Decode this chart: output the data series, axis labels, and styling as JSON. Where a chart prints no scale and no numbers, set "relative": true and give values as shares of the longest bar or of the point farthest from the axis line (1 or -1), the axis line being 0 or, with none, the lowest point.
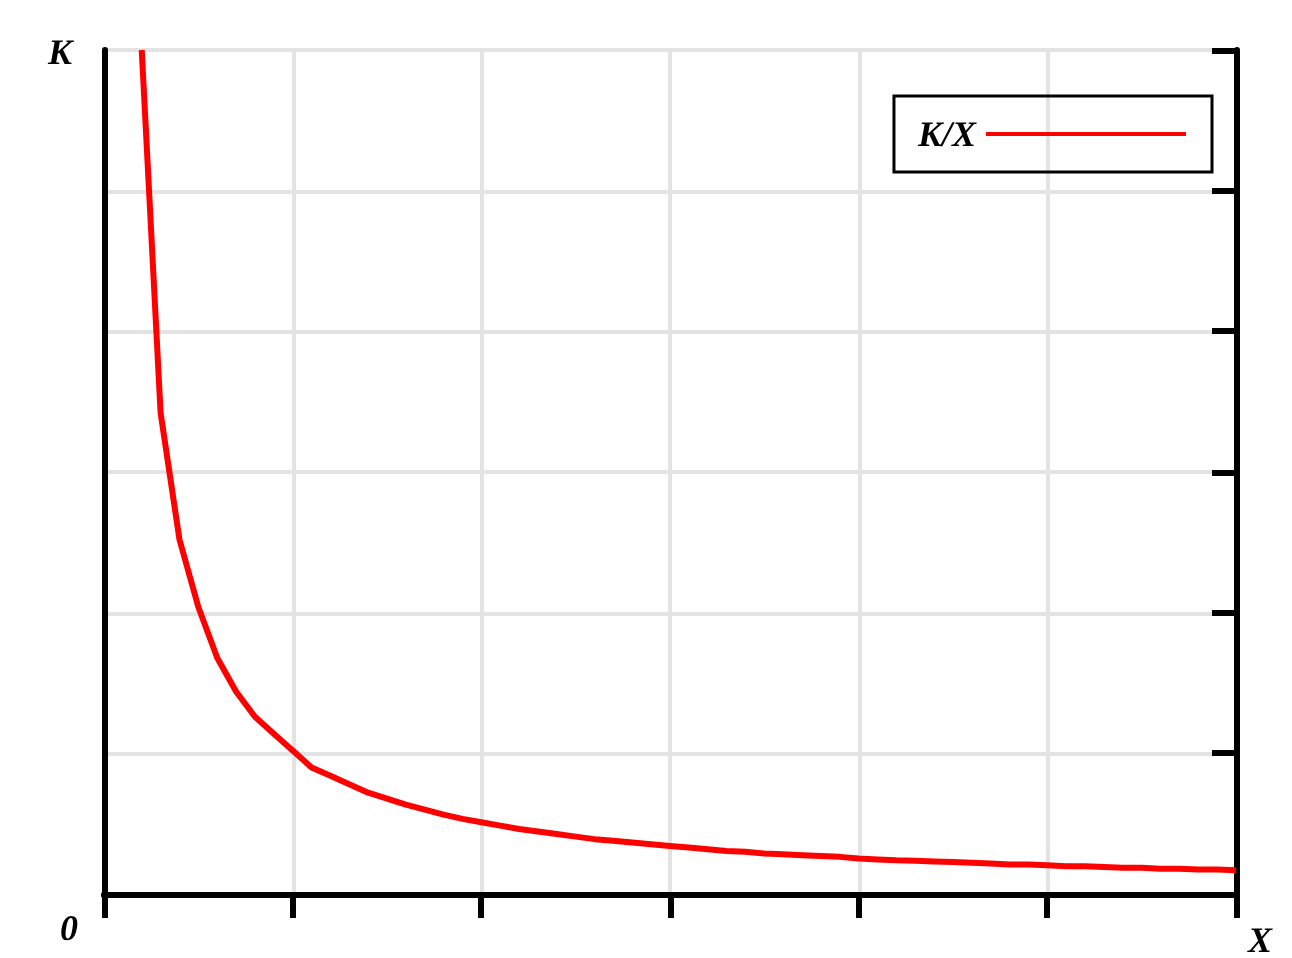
{
  "chart_data": {
    "type": "line",
    "relative": true,
    "xlabel": "X",
    "ylabel": "K",
    "annotations": [
      "0"
    ],
    "categories": [
      null,
      null,
      null,
      null,
      null,
      null,
      null,
      null,
      null,
      null,
      null,
      null,
      null,
      null,
      null,
      null,
      null,
      null,
      null,
      null,
      null,
      null,
      null,
      null,
      null,
      null,
      null,
      null,
      null,
      null,
      null,
      null,
      null,
      null,
      null,
      null,
      null,
      null,
      null,
      null,
      null,
      null,
      null,
      null,
      null,
      null,
      null,
      null,
      null,
      null,
      null,
      null,
      null,
      null,
      null,
      null,
      null,
      null,
      null,
      null,
      null
    ],
    "series": [
      {
        "name": "K/X",
        "color": "#ff0000",
        "values": [
          null,
          null,
          1,
          0.57,
          0.42,
          0.34,
          0.28,
          0.24,
          0.21,
          0.19,
          0.17,
          0.15,
          0.14,
          0.13,
          0.12,
          0.113,
          0.106,
          0.1,
          0.094,
          0.089,
          0.085,
          0.081,
          0.077,
          0.074,
          0.071,
          0.068,
          0.065,
          0.063,
          0.061,
          0.059,
          0.057,
          0.055,
          0.053,
          0.051,
          0.05,
          0.048,
          0.047,
          0.046,
          0.045,
          0.044,
          0.042,
          0.041,
          0.04,
          0.0395,
          0.0386,
          0.038,
          0.037,
          0.036,
          0.035,
          0.035,
          0.034,
          0.033,
          0.033,
          0.032,
          0.031,
          0.031,
          0.03,
          0.03,
          0.029,
          0.029,
          0.028
        ]
      }
    ],
    "grid": true,
    "legend": "top right",
    "marker": "none",
    "line_style": "solid"
  }
}
